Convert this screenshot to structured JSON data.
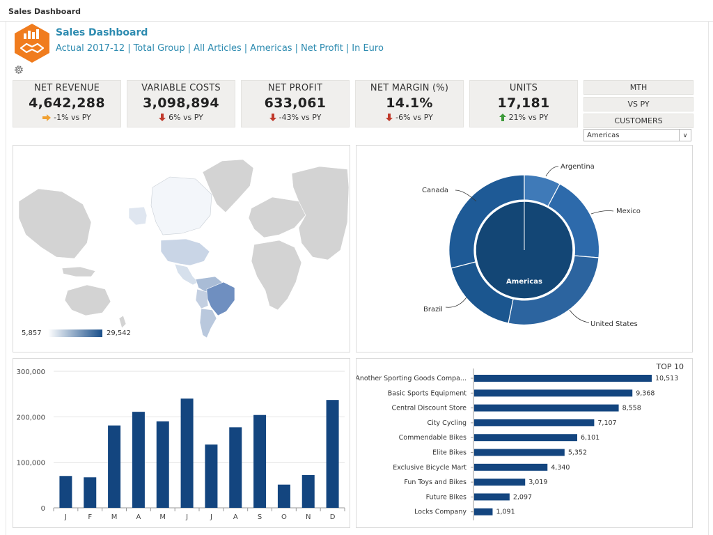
{
  "window": {
    "title": "Sales Dashboard"
  },
  "header": {
    "title": "Sales Dashboard",
    "crumbs": [
      "Actual 2017-12",
      "Total Group",
      "All Articles",
      "Americas",
      "Net Profit",
      "In Euro"
    ]
  },
  "kpis": [
    {
      "label": "NET REVENUE",
      "value": "4,642,288",
      "change": "-1% vs PY",
      "trend": "flat"
    },
    {
      "label": "VARIABLE COSTS",
      "value": "3,098,894",
      "change": "6% vs PY",
      "trend": "down"
    },
    {
      "label": "NET PROFIT",
      "value": "633,061",
      "change": "-43% vs PY",
      "trend": "down"
    },
    {
      "label": "NET MARGIN (%)",
      "value": "14.1%",
      "change": "-6% vs PY",
      "trend": "down"
    },
    {
      "label": "UNITS",
      "value": "17,181",
      "change": "21% vs PY",
      "trend": "up"
    }
  ],
  "side_buttons": [
    "MTH",
    "VS PY",
    "CUSTOMERS"
  ],
  "region_select": {
    "value": "Americas"
  },
  "map": {
    "legend_min": "5,857",
    "legend_max": "29,542",
    "colors": {
      "low": "#e8eef6",
      "high": "#1a4f8a"
    }
  },
  "donut": {
    "center_label": "Americas",
    "labels": [
      "Argentina",
      "Mexico",
      "United States",
      "Brazil",
      "Canada"
    ]
  },
  "colors": {
    "accent": "#2d8bb0",
    "bar": "#13457f",
    "logo": "#f07c1e",
    "down": "#c0392b",
    "up": "#3d9a3a",
    "flat": "#f0a030"
  },
  "chart_data": [
    {
      "type": "bar",
      "categories": [
        "J",
        "F",
        "M",
        "A",
        "M",
        "J",
        "J",
        "A",
        "S",
        "O",
        "N",
        "D"
      ],
      "values": [
        70000,
        67000,
        181000,
        211000,
        190000,
        240000,
        139000,
        177000,
        204000,
        51000,
        72000,
        237000
      ],
      "yticks": [
        "0",
        "100,000",
        "200,000",
        "300,000"
      ],
      "ylim": [
        0,
        300000
      ]
    },
    {
      "type": "bar",
      "orientation": "horizontal",
      "title": "TOP 10",
      "categories": [
        "Another Sporting Goods Compa...",
        "Basic Sports Equipment",
        "Central Discount Store",
        "City Cycling",
        "Commendable Bikes",
        "Elite Bikes",
        "Exclusive Bicycle Mart",
        "Fun Toys and Bikes",
        "Future Bikes",
        "Locks Company"
      ],
      "values": [
        10513,
        9368,
        8558,
        7107,
        6101,
        5352,
        4340,
        3019,
        2097,
        1091
      ],
      "labels": [
        "10,513",
        "9,368",
        "8,558",
        "7,107",
        "6,101",
        "5,352",
        "4,340",
        "3,019",
        "2,097",
        "1,091"
      ]
    }
  ]
}
